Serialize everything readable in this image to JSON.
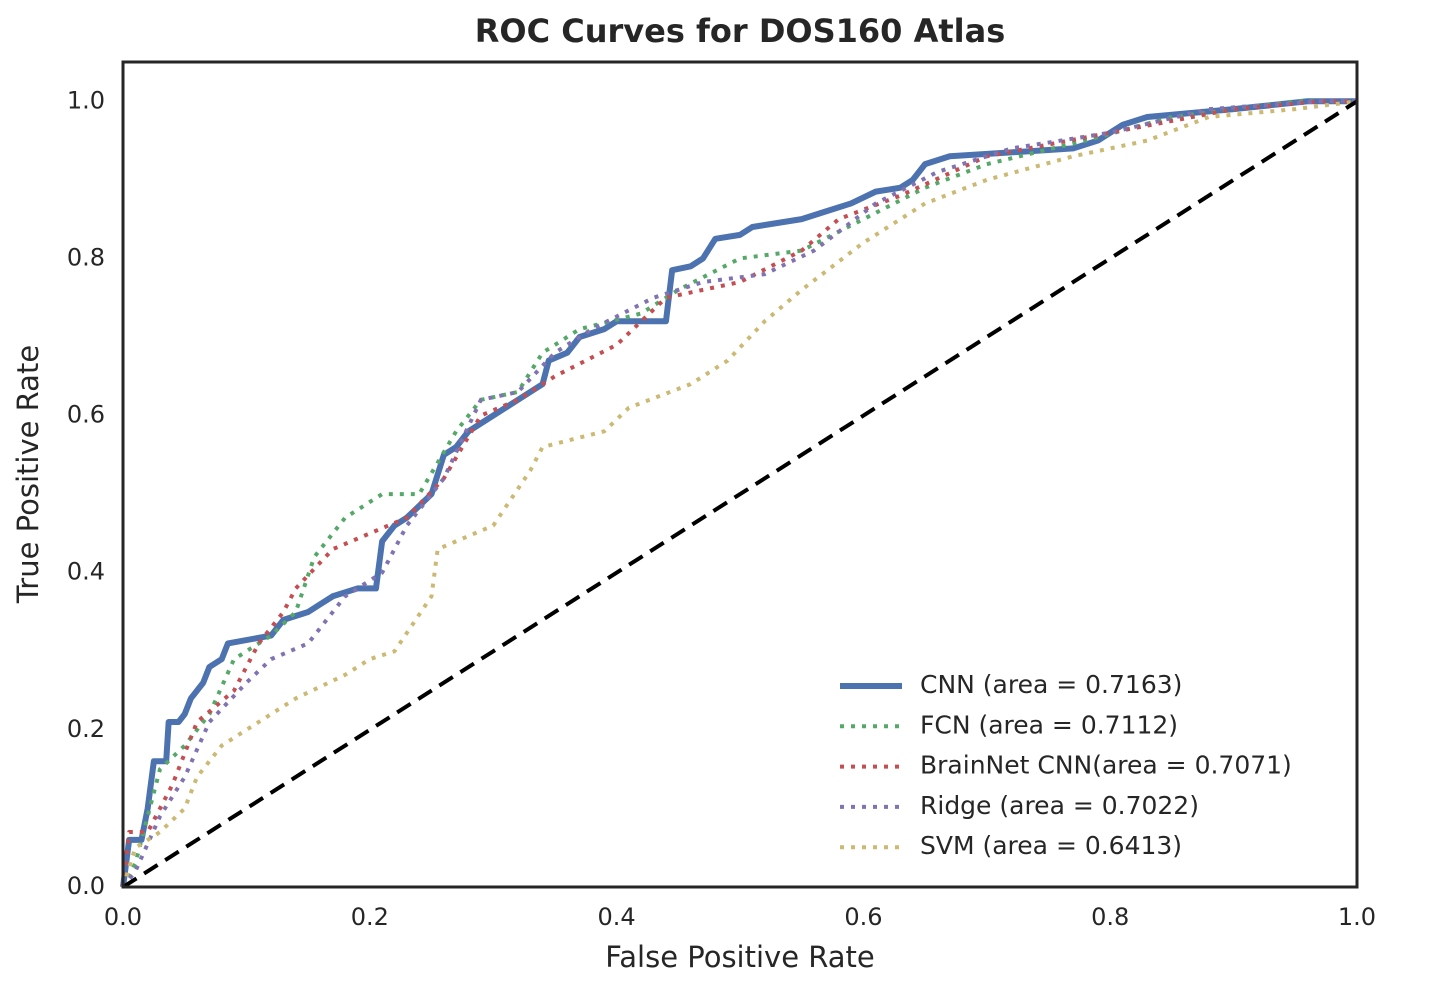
{
  "chart_data": {
    "type": "line",
    "title": "ROC Curves for DOS160 Atlas",
    "xlabel": "False Positive Rate",
    "ylabel": "True Positive Rate",
    "xlim": [
      0,
      1
    ],
    "ylim": [
      0,
      1.05
    ],
    "xticks": [
      {
        "value": 0,
        "label": "0.0"
      },
      0.2,
      0.4,
      0.6,
      0.8,
      {
        "value": 1,
        "label": "1.0"
      }
    ],
    "yticks": [
      {
        "value": 0,
        "label": "0.0"
      },
      0.2,
      0.4,
      0.6,
      0.8,
      {
        "value": 1,
        "label": "1.0"
      }
    ],
    "legend": "lower right",
    "grid": false,
    "series": [
      {
        "name": "CNN (area = 0.7163)",
        "color": "#4c72b0",
        "style": "solid",
        "x": [
          0,
          0.005,
          0.015,
          0.02,
          0.025,
          0.035,
          0.037,
          0.045,
          0.05,
          0.055,
          0.065,
          0.07,
          0.08,
          0.085,
          0.12,
          0.13,
          0.15,
          0.16,
          0.17,
          0.19,
          0.205,
          0.21,
          0.22,
          0.23,
          0.25,
          0.26,
          0.27,
          0.28,
          0.3,
          0.31,
          0.32,
          0.34,
          0.345,
          0.36,
          0.37,
          0.39,
          0.4,
          0.44,
          0.445,
          0.46,
          0.47,
          0.48,
          0.5,
          0.51,
          0.55,
          0.57,
          0.59,
          0.61,
          0.63,
          0.64,
          0.65,
          0.67,
          0.77,
          0.79,
          0.81,
          0.83,
          0.9,
          0.96,
          1
        ],
        "values": [
          0,
          0.06,
          0.06,
          0.1,
          0.16,
          0.16,
          0.21,
          0.21,
          0.22,
          0.24,
          0.26,
          0.28,
          0.29,
          0.31,
          0.32,
          0.34,
          0.35,
          0.36,
          0.37,
          0.38,
          0.38,
          0.44,
          0.46,
          0.47,
          0.5,
          0.55,
          0.56,
          0.58,
          0.6,
          0.61,
          0.62,
          0.64,
          0.67,
          0.68,
          0.7,
          0.71,
          0.72,
          0.72,
          0.785,
          0.79,
          0.8,
          0.825,
          0.83,
          0.84,
          0.85,
          0.86,
          0.87,
          0.885,
          0.89,
          0.9,
          0.92,
          0.93,
          0.94,
          0.95,
          0.97,
          0.98,
          0.99,
          1,
          1
        ]
      },
      {
        "name": "FCN (area = 0.7112)",
        "color": "#55a868",
        "style": "dotted",
        "x": [
          0,
          0.01,
          0.02,
          0.03,
          0.05,
          0.07,
          0.09,
          0.12,
          0.14,
          0.155,
          0.18,
          0.21,
          0.24,
          0.27,
          0.29,
          0.32,
          0.34,
          0.37,
          0.42,
          0.45,
          0.5,
          0.55,
          0.6,
          0.65,
          0.7,
          0.78,
          0.85,
          0.9,
          0.95,
          1
        ],
        "values": [
          0,
          0.03,
          0.09,
          0.15,
          0.18,
          0.22,
          0.29,
          0.32,
          0.35,
          0.42,
          0.47,
          0.5,
          0.5,
          0.58,
          0.62,
          0.63,
          0.68,
          0.71,
          0.73,
          0.76,
          0.8,
          0.81,
          0.85,
          0.89,
          0.92,
          0.95,
          0.98,
          0.99,
          1,
          1
        ]
      },
      {
        "name": "BrainNet CNN(area = 0.7071)",
        "color": "#c44e52",
        "style": "dotted",
        "x": [
          0,
          0.005,
          0.02,
          0.04,
          0.06,
          0.09,
          0.11,
          0.13,
          0.14,
          0.17,
          0.2,
          0.23,
          0.26,
          0.29,
          0.32,
          0.35,
          0.4,
          0.44,
          0.5,
          0.55,
          0.58,
          0.63,
          0.7,
          0.8,
          0.9,
          0.97,
          1
        ],
        "values": [
          0,
          0.07,
          0.07,
          0.13,
          0.21,
          0.25,
          0.31,
          0.35,
          0.38,
          0.43,
          0.45,
          0.47,
          0.52,
          0.6,
          0.62,
          0.65,
          0.69,
          0.75,
          0.77,
          0.81,
          0.85,
          0.88,
          0.93,
          0.96,
          0.99,
          1,
          1
        ]
      },
      {
        "name": "Ridge (area = 0.7022)",
        "color": "#8172b2",
        "style": "dotted",
        "x": [
          0,
          0.01,
          0.03,
          0.05,
          0.07,
          0.1,
          0.12,
          0.15,
          0.18,
          0.21,
          0.23,
          0.26,
          0.29,
          0.32,
          0.35,
          0.38,
          0.43,
          0.47,
          0.52,
          0.56,
          0.61,
          0.66,
          0.72,
          0.8,
          0.88,
          0.97,
          1
        ],
        "values": [
          0,
          0.02,
          0.09,
          0.14,
          0.21,
          0.26,
          0.29,
          0.31,
          0.37,
          0.4,
          0.46,
          0.52,
          0.62,
          0.63,
          0.68,
          0.71,
          0.75,
          0.77,
          0.78,
          0.81,
          0.87,
          0.91,
          0.94,
          0.96,
          0.99,
          1,
          1
        ]
      },
      {
        "name": "SVM (area = 0.6413)",
        "color": "#ccb974",
        "style": "dotted",
        "x": [
          0,
          0.01,
          0.03,
          0.05,
          0.06,
          0.08,
          0.11,
          0.14,
          0.18,
          0.2,
          0.22,
          0.25,
          0.255,
          0.3,
          0.33,
          0.34,
          0.39,
          0.41,
          0.46,
          0.49,
          0.52,
          0.55,
          0.6,
          0.65,
          0.7,
          0.77,
          0.83,
          0.88,
          0.95,
          1
        ],
        "values": [
          0,
          0.05,
          0.07,
          0.1,
          0.14,
          0.18,
          0.21,
          0.24,
          0.27,
          0.29,
          0.3,
          0.37,
          0.43,
          0.46,
          0.53,
          0.56,
          0.58,
          0.61,
          0.64,
          0.67,
          0.72,
          0.76,
          0.82,
          0.87,
          0.9,
          0.93,
          0.95,
          0.98,
          0.99,
          1
        ]
      },
      {
        "color": "#000000",
        "style": "dashed",
        "x": [
          0,
          1
        ],
        "values": [
          0,
          1
        ]
      }
    ]
  }
}
